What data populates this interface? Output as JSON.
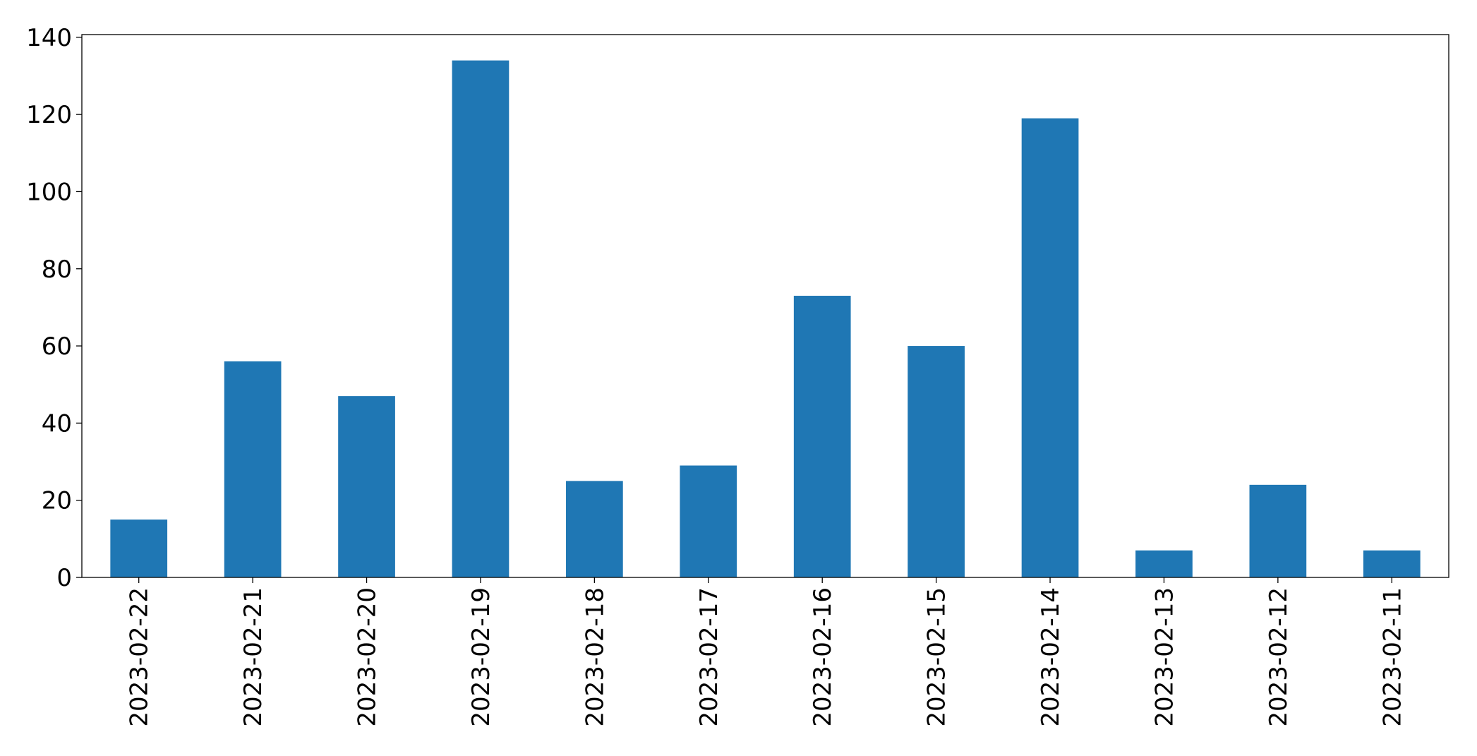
{
  "chart_data": {
    "type": "bar",
    "categories": [
      "2023-02-22",
      "2023-02-21",
      "2023-02-20",
      "2023-02-19",
      "2023-02-18",
      "2023-02-17",
      "2023-02-16",
      "2023-02-15",
      "2023-02-14",
      "2023-02-13",
      "2023-02-12",
      "2023-02-11"
    ],
    "values": [
      15,
      56,
      47,
      134,
      25,
      29,
      73,
      60,
      119,
      7,
      24,
      7
    ],
    "color": "#1f77b4",
    "ylim": [
      0,
      140.7
    ],
    "yticks": [
      0,
      20,
      40,
      60,
      80,
      100,
      120,
      140
    ],
    "grid": false
  }
}
